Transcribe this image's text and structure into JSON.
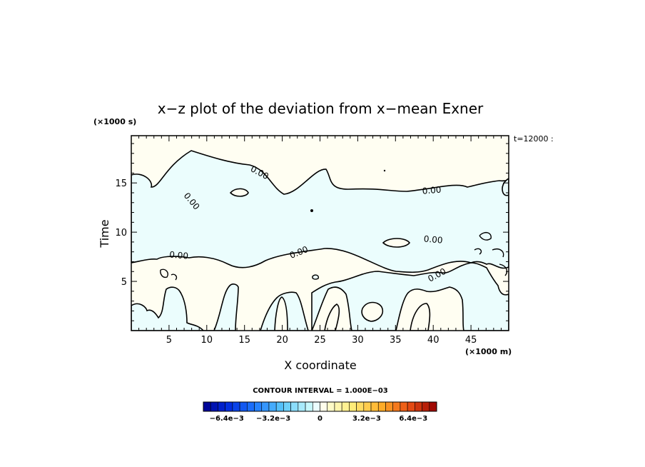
{
  "chart_data": {
    "type": "contour",
    "title": "x−z plot of the deviation from x−mean Exner",
    "time_label": "t=12000 :",
    "xlabel": "X coordinate",
    "ylabel": "Time",
    "x_unit": "(×1000 m)",
    "y_unit": "(×1000 s)",
    "xlim": [
      0,
      50
    ],
    "ylim": [
      0,
      19.8
    ],
    "x_ticks": [
      5,
      10,
      15,
      20,
      25,
      30,
      35,
      40,
      45
    ],
    "x_tick_labels": [
      "5",
      "10",
      "15",
      "20",
      "25",
      "30",
      "35",
      "40",
      "45"
    ],
    "y_ticks": [
      5,
      10,
      15
    ],
    "y_tick_labels": [
      "5",
      "10",
      "15"
    ],
    "contour_labels": [
      {
        "text": "0.00",
        "x": 17.0,
        "y": 15.9,
        "angle": 28
      },
      {
        "text": "0.00",
        "x": 8.0,
        "y": 13.0,
        "angle": 50
      },
      {
        "text": "0.00",
        "x": 39.8,
        "y": 14.1,
        "angle": -5
      },
      {
        "text": "0.00",
        "x": 40.0,
        "y": 9.1,
        "angle": 5
      },
      {
        "text": "0.00",
        "x": 6.3,
        "y": 7.5,
        "angle": 5
      },
      {
        "text": "0.00",
        "x": 22.2,
        "y": 7.8,
        "angle": -22
      },
      {
        "text": "0.00",
        "x": 40.5,
        "y": 5.5,
        "angle": -28
      }
    ],
    "contour_interval_text": "CONTOUR INTERVAL = 1.000E−03",
    "colorbar": {
      "min": -0.008,
      "max": 0.008,
      "n_bins": 32,
      "tick_values": [
        -0.0064,
        -0.0032,
        0,
        0.0032,
        0.0064
      ],
      "tick_labels": [
        "−6.4e−3",
        "−3.2e−3",
        "0",
        "3.2e−3",
        "6.4e−3"
      ]
    },
    "colors": {
      "positive_fill": "#fffef2",
      "negative_fill": "#ebfdfd",
      "contour_line": "#000000"
    },
    "grid": false
  }
}
